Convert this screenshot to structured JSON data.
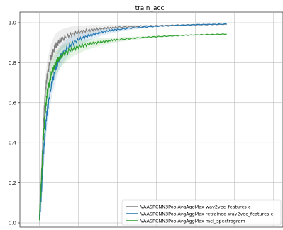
{
  "chart_data": {
    "type": "line",
    "title": "train_acc",
    "xlabel": "",
    "ylabel": "",
    "ylim": [
      0.0,
      1.0
    ],
    "yticks": [
      "0.0",
      "0.2",
      "0.4",
      "0.6",
      "0.8",
      "1.0"
    ],
    "x_ticks_labeled": false,
    "grid": true,
    "legend_position": "bottom-right",
    "x": [
      0,
      0.25,
      0.5,
      0.75,
      1.0,
      1.5,
      2,
      2.5,
      3,
      4,
      5,
      6,
      7,
      8,
      9,
      10,
      12,
      14,
      16,
      18,
      20,
      22,
      24
    ],
    "series": [
      {
        "name": "VAASRCNN3PoolAvgAggMax wav2vec_features-c",
        "color": "#7f7f7f",
        "values": [
          0.02,
          0.22,
          0.48,
          0.65,
          0.74,
          0.83,
          0.88,
          0.905,
          0.92,
          0.94,
          0.952,
          0.96,
          0.966,
          0.97,
          0.974,
          0.977,
          0.981,
          0.984,
          0.986,
          0.988,
          0.99,
          0.991,
          0.992
        ]
      },
      {
        "name": "VAASRCNN3PoolAvgAggMax retrained-wav2vec_features-c",
        "color": "#1f77b4",
        "values": [
          0.02,
          0.14,
          0.33,
          0.46,
          0.56,
          0.68,
          0.76,
          0.815,
          0.85,
          0.89,
          0.915,
          0.93,
          0.943,
          0.953,
          0.96,
          0.966,
          0.974,
          0.98,
          0.984,
          0.987,
          0.99,
          0.992,
          0.993
        ]
      },
      {
        "name": "VAASRCNN3PoolAvgAggMax mel_spectrogram",
        "color": "#2ca02c",
        "values": [
          0.02,
          0.2,
          0.42,
          0.56,
          0.65,
          0.74,
          0.79,
          0.82,
          0.84,
          0.865,
          0.88,
          0.89,
          0.898,
          0.905,
          0.91,
          0.915,
          0.922,
          0.928,
          0.932,
          0.936,
          0.939,
          0.941,
          0.943
        ]
      }
    ]
  }
}
